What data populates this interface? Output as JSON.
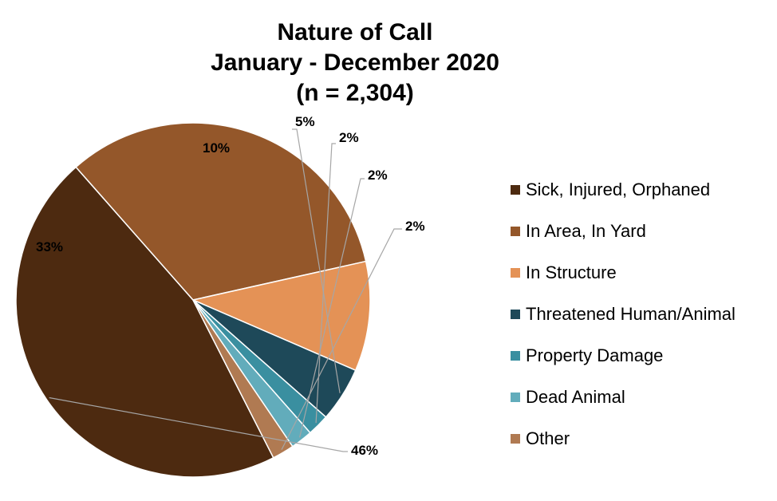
{
  "chart_data": {
    "type": "pie",
    "title": "Nature of Call",
    "subtitle": "January - December 2020",
    "sample_size": "(n = 2,304)",
    "legend_position": "right",
    "slices": [
      {
        "name": "Sick, Injured, Orphaned",
        "value": 46,
        "label": "46%",
        "color": "#4d2a10"
      },
      {
        "name": "In Area, In Yard",
        "value": 33,
        "label": "33%",
        "color": "#94572a"
      },
      {
        "name": "In Structure",
        "value": 10,
        "label": "10%",
        "color": "#e49256"
      },
      {
        "name": "Threatened Human/Animal",
        "value": 5,
        "label": "5%",
        "color": "#1e4959"
      },
      {
        "name": "Property Damage",
        "value": 2,
        "label": "2%",
        "color": "#3a8fa0"
      },
      {
        "name": "Dead Animal",
        "value": 2,
        "label": "2%",
        "color": "#62acbb"
      },
      {
        "name": "Other",
        "value": 2,
        "label": "2%",
        "color": "#b07a52"
      }
    ]
  }
}
